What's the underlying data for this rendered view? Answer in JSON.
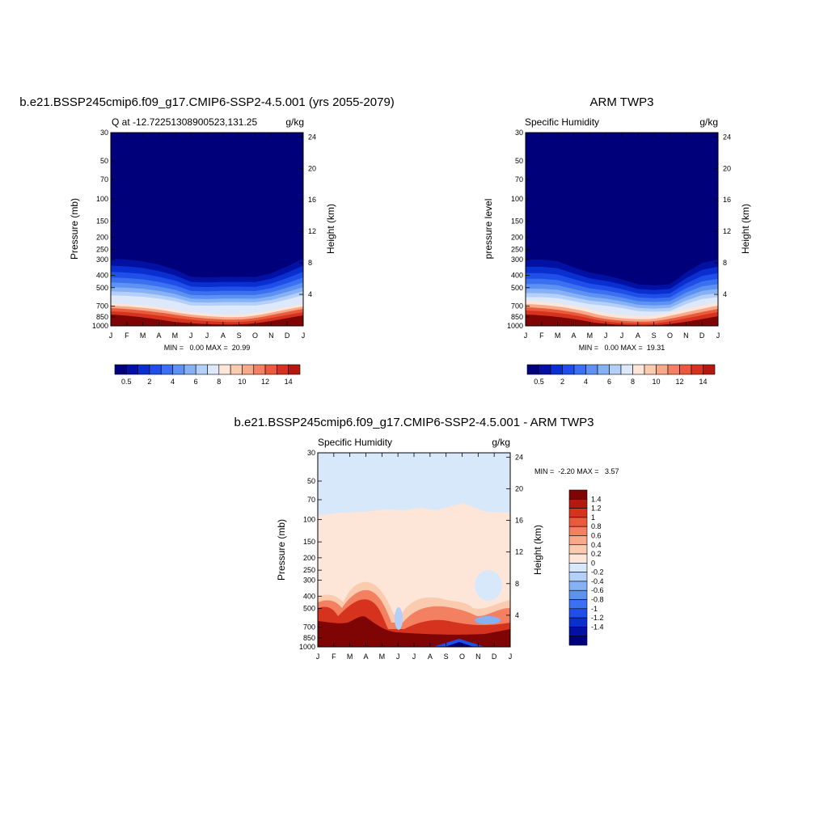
{
  "chart_data": [
    {
      "type": "heatmap",
      "id": "model",
      "title": "b.e21.BSSP245cmip6.f09_g17.CMIP6-SSP2-4.5.001 (yrs 2055-2079)",
      "subtitle_left": "Q at -12.72251308900523,131.25",
      "subtitle_right": "g/kg",
      "ylabel": "Pressure (mb)",
      "ylabel_right": "Height (km)",
      "x_ticks": [
        "J",
        "F",
        "M",
        "A",
        "M",
        "J",
        "J",
        "A",
        "S",
        "O",
        "N",
        "D",
        "J"
      ],
      "y_ticks": [
        30,
        50,
        70,
        100,
        150,
        200,
        250,
        300,
        400,
        500,
        700,
        850,
        1000
      ],
      "height_ticks": [
        24,
        20,
        16,
        12,
        8,
        4
      ],
      "stats": "MIN =   0.00 MAX =  20.99",
      "min": 0.0,
      "max": 20.99,
      "colorbar_labels": [
        "0.5",
        "2",
        "4",
        "6",
        "8",
        "10",
        "12",
        "14"
      ],
      "moist_top_mb": [
        295,
        300,
        310,
        330,
        360,
        410,
        415,
        410,
        410,
        412,
        385,
        340,
        295
      ]
    },
    {
      "type": "heatmap",
      "id": "obs",
      "title": "ARM TWP3",
      "subtitle_left": "Specific Humidity",
      "subtitle_right": "g/kg",
      "ylabel": "pressure level",
      "ylabel_right": "Height (km)",
      "x_ticks": [
        "J",
        "F",
        "M",
        "A",
        "M",
        "J",
        "J",
        "A",
        "S",
        "O",
        "N",
        "D",
        "J"
      ],
      "y_ticks": [
        30,
        50,
        70,
        100,
        150,
        200,
        250,
        300,
        400,
        500,
        700,
        850,
        1000
      ],
      "height_ticks": [
        24,
        20,
        16,
        12,
        8,
        4
      ],
      "stats": "MIN =   0.00 MAX =  19.31",
      "min": 0.0,
      "max": 19.31,
      "colorbar_labels": [
        "0.5",
        "2",
        "4",
        "6",
        "8",
        "10",
        "12",
        "14"
      ],
      "moist_top_mb": [
        300,
        300,
        310,
        345,
        380,
        400,
        430,
        470,
        480,
        470,
        380,
        320,
        300
      ]
    },
    {
      "type": "heatmap",
      "id": "diff",
      "title": "b.e21.BSSP245cmip6.f09_g17.CMIP6-SSP2-4.5.001 - ARM TWP3",
      "subtitle_left": "Specific Humidity",
      "subtitle_right": "g/kg",
      "ylabel": "Pressure (mb)",
      "ylabel_right": "Height (km)",
      "x_ticks": [
        "J",
        "F",
        "M",
        "A",
        "M",
        "J",
        "J",
        "A",
        "S",
        "O",
        "N",
        "D",
        "J"
      ],
      "y_ticks": [
        30,
        50,
        70,
        100,
        150,
        200,
        250,
        300,
        400,
        500,
        700,
        850,
        1000
      ],
      "height_ticks": [
        24,
        20,
        16,
        12,
        8,
        4
      ],
      "stats": "MIN =  -2.20 MAX =   3.57",
      "min": -2.2,
      "max": 3.57,
      "colorbar_labels": [
        "1.4",
        "1.2",
        "1",
        "0.8",
        "0.6",
        "0.4",
        "0.2",
        "0",
        "-0.2",
        "-0.4",
        "-0.6",
        "-0.8",
        "-1",
        "-1.2",
        "-1.4"
      ]
    }
  ],
  "colors": {
    "humidity_scale": [
      "#00007a",
      "#0011a3",
      "#0a2fd0",
      "#1f4fe8",
      "#3b70f0",
      "#5d91f2",
      "#87b1f5",
      "#b4cff8",
      "#dde9fb",
      "#fde6d7",
      "#fbcbb0",
      "#f7a98a",
      "#f28061",
      "#ea5a3c",
      "#d6331f",
      "#b21a10",
      "#7f0505"
    ],
    "diff_scale": [
      "#7f0505",
      "#b21a10",
      "#d6331f",
      "#ea5a3c",
      "#f28061",
      "#f7a98a",
      "#fbcbb0",
      "#fde6d7",
      "#d8e8fb",
      "#b4cff8",
      "#87b1f5",
      "#5d91f2",
      "#3b70f0",
      "#1f4fe8",
      "#0a2fd0",
      "#0011a3",
      "#00007a"
    ]
  }
}
